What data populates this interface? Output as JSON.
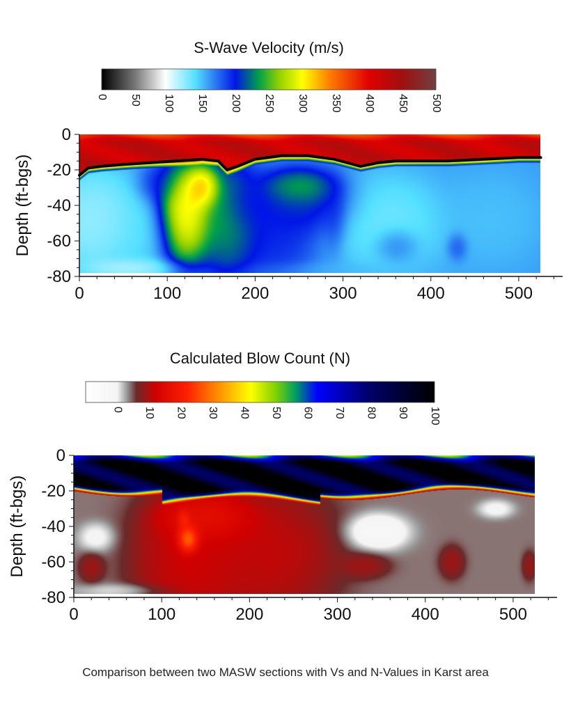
{
  "caption": "Comparison between two MASW sections with Vs and N-Values in Karst area",
  "chart_data": [
    {
      "type": "heatmap",
      "colorbar_title": "S-Wave Velocity (m/s)",
      "colorbar_ticks": [
        "0",
        "50",
        "100",
        "150",
        "200",
        "250",
        "300",
        "350",
        "400",
        "450",
        "500"
      ],
      "colorbar_range": [
        0,
        500
      ],
      "colorbar_stops": [
        {
          "v": 0,
          "c": "#000000"
        },
        {
          "v": 50,
          "c": "#777777"
        },
        {
          "v": 95,
          "c": "#ffffff"
        },
        {
          "v": 140,
          "c": "#55e0ff"
        },
        {
          "v": 200,
          "c": "#0016e6"
        },
        {
          "v": 235,
          "c": "#00a04a"
        },
        {
          "v": 265,
          "c": "#90d000"
        },
        {
          "v": 300,
          "c": "#ffff00"
        },
        {
          "v": 340,
          "c": "#ff8000"
        },
        {
          "v": 400,
          "c": "#e00000"
        },
        {
          "v": 450,
          "c": "#a01010"
        },
        {
          "v": 500,
          "c": "#704040"
        }
      ],
      "ylabel": "Depth (ft-bgs)",
      "xlim": [
        0,
        550
      ],
      "ylim": [
        -80,
        0
      ],
      "x_ticks": [
        "0",
        "100",
        "200",
        "300",
        "400",
        "500"
      ],
      "y_ticks": [
        "0",
        "-20",
        "-40",
        "-60",
        "-80"
      ],
      "data_extent_x": [
        0,
        525
      ],
      "data_extent_y": [
        -78,
        0
      ],
      "background_value": 160,
      "blobs": [
        {
          "x": 15,
          "y": -48,
          "rx": 55,
          "ry": 30,
          "v": 110,
          "w": 1
        },
        {
          "x": 70,
          "y": -55,
          "rx": 40,
          "ry": 22,
          "v": 135,
          "w": 0.8
        },
        {
          "x": 90,
          "y": -28,
          "rx": 25,
          "ry": 12,
          "v": 210,
          "w": 0.6
        },
        {
          "x": 60,
          "y": -75,
          "rx": 55,
          "ry": 6,
          "v": 90,
          "w": 0.6
        },
        {
          "x": 120,
          "y": -45,
          "rx": 30,
          "ry": 26,
          "v": 350,
          "w": 1.2
        },
        {
          "x": 140,
          "y": -30,
          "rx": 20,
          "ry": 12,
          "v": 380,
          "w": 0.9
        },
        {
          "x": 170,
          "y": -48,
          "rx": 35,
          "ry": 32,
          "v": 260,
          "w": 1.1
        },
        {
          "x": 190,
          "y": -40,
          "rx": 25,
          "ry": 14,
          "v": 185,
          "w": 0.9
        },
        {
          "x": 220,
          "y": -55,
          "rx": 50,
          "ry": 28,
          "v": 205,
          "w": 1.2
        },
        {
          "x": 255,
          "y": -38,
          "rx": 55,
          "ry": 18,
          "v": 225,
          "w": 1
        },
        {
          "x": 250,
          "y": -30,
          "rx": 40,
          "ry": 10,
          "v": 290,
          "w": 0.7
        },
        {
          "x": 350,
          "y": -50,
          "rx": 65,
          "ry": 28,
          "v": 125,
          "w": 1.1
        },
        {
          "x": 360,
          "y": -62,
          "rx": 25,
          "ry": 10,
          "v": 200,
          "w": 0.7
        },
        {
          "x": 430,
          "y": -63,
          "rx": 12,
          "ry": 8,
          "v": 200,
          "w": 0.7
        },
        {
          "x": 470,
          "y": -48,
          "rx": 60,
          "ry": 28,
          "v": 145,
          "w": 0.9
        },
        {
          "x": 290,
          "y": -45,
          "rx": 14,
          "ry": 20,
          "v": 210,
          "w": 0.6
        },
        {
          "x": 300,
          "y": -76,
          "rx": 120,
          "ry": 5,
          "v": 150,
          "w": 0.5
        }
      ],
      "top_layer": {
        "value": 420,
        "surface_value": 370,
        "deep_gradient": true
      },
      "boundary_line": {
        "x": [
          0,
          10,
          25,
          50,
          80,
          110,
          140,
          158,
          168,
          180,
          200,
          230,
          260,
          290,
          320,
          340,
          360,
          390,
          420,
          460,
          500,
          525
        ],
        "y": [
          -23,
          -19,
          -18,
          -17,
          -16,
          -15,
          -14,
          -15,
          -20,
          -18,
          -14,
          -12,
          -12,
          -14,
          -18,
          -16,
          -15,
          -15,
          -15,
          -14,
          -13,
          -13
        ]
      }
    },
    {
      "type": "heatmap",
      "colorbar_title": "Calculated Blow Count (N)",
      "colorbar_ticks": [
        "0",
        "10",
        "20",
        "30",
        "40",
        "50",
        "60",
        "70",
        "80",
        "90",
        "100"
      ],
      "colorbar_range": [
        -10,
        100
      ],
      "colorbar_stops": [
        {
          "v": -10,
          "c": "#ffffff"
        },
        {
          "v": 0,
          "c": "#f4f4f4"
        },
        {
          "v": 3,
          "c": "#999999"
        },
        {
          "v": 6,
          "c": "#6a2a2a"
        },
        {
          "v": 12,
          "c": "#d00000"
        },
        {
          "v": 22,
          "c": "#ff2000"
        },
        {
          "v": 32,
          "c": "#ff9000"
        },
        {
          "v": 42,
          "c": "#ffff00"
        },
        {
          "v": 50,
          "c": "#80d000"
        },
        {
          "v": 56,
          "c": "#00a060"
        },
        {
          "v": 63,
          "c": "#0000ff"
        },
        {
          "v": 80,
          "c": "#000066"
        },
        {
          "v": 100,
          "c": "#000000"
        }
      ],
      "ylabel": "Depth (ft-bgs)",
      "xlim": [
        0,
        550
      ],
      "ylim": [
        -80,
        0
      ],
      "x_ticks": [
        "0",
        "100",
        "200",
        "300",
        "400",
        "500"
      ],
      "y_ticks": [
        "0",
        "-20",
        "-40",
        "-60",
        "-80"
      ],
      "data_extent_x": [
        0,
        525
      ],
      "data_extent_y": [
        -78,
        0
      ],
      "background_value": 4,
      "blobs": [
        {
          "x": 130,
          "y": -60,
          "rx": 60,
          "ry": 40,
          "v": 14,
          "w": 1.3
        },
        {
          "x": 220,
          "y": -55,
          "rx": 75,
          "ry": 35,
          "v": 13,
          "w": 1.4
        },
        {
          "x": 150,
          "y": -35,
          "rx": 55,
          "ry": 14,
          "v": 22,
          "w": 1
        },
        {
          "x": 130,
          "y": -47,
          "rx": 12,
          "ry": 8,
          "v": 55,
          "w": 1
        },
        {
          "x": 125,
          "y": -36,
          "rx": 8,
          "ry": 6,
          "v": 35,
          "w": 0.7
        },
        {
          "x": 25,
          "y": -46,
          "rx": 20,
          "ry": 8,
          "v": -3,
          "w": 0.8
        },
        {
          "x": 345,
          "y": -43,
          "rx": 35,
          "ry": 10,
          "v": -6,
          "w": 1
        },
        {
          "x": 480,
          "y": -30,
          "rx": 20,
          "ry": 5,
          "v": -3,
          "w": 0.8
        },
        {
          "x": 20,
          "y": -63,
          "rx": 14,
          "ry": 8,
          "v": 11,
          "w": 0.9
        },
        {
          "x": 330,
          "y": -62,
          "rx": 28,
          "ry": 7,
          "v": 11,
          "w": 0.9
        },
        {
          "x": 430,
          "y": -60,
          "rx": 14,
          "ry": 9,
          "v": 11,
          "w": 0.9
        },
        {
          "x": 518,
          "y": -62,
          "rx": 8,
          "ry": 8,
          "v": 11,
          "w": 0.7
        },
        {
          "x": 60,
          "y": -76,
          "rx": 60,
          "ry": 4,
          "v": -2,
          "w": 0.6
        },
        {
          "x": 90,
          "y": -55,
          "rx": 15,
          "ry": 18,
          "v": 10,
          "w": 0.5
        }
      ],
      "top_layer": {
        "value": 95,
        "surface_value": 60,
        "deep_gradient": true
      },
      "boundary_line": null
    }
  ]
}
